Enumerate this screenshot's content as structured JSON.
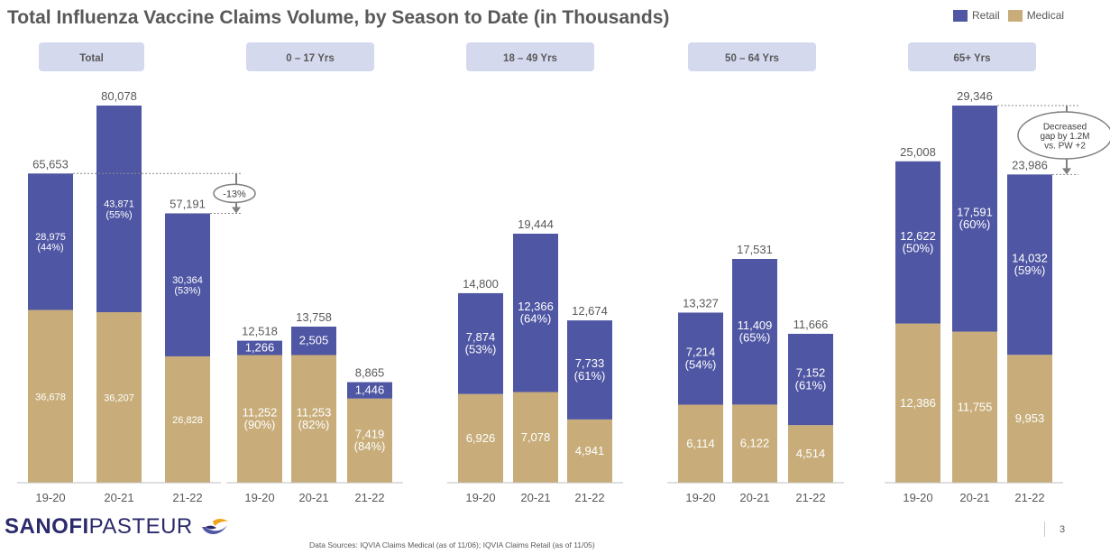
{
  "title": "Total Influenza Vaccine Claims Volume, by Season to Date (in Thousands)",
  "legend": [
    {
      "label": "Retail",
      "color": "#4f56a3"
    },
    {
      "label": "Medical",
      "color": "#c8ad7a"
    }
  ],
  "colors": {
    "retail": "#4f56a3",
    "medical": "#c8ad7a",
    "panel_header": "#d5d9ee",
    "text": "#595959"
  },
  "chart_data": {
    "type": "bar",
    "stacked": true,
    "ylim": [
      0,
      80078
    ],
    "groups": [
      {
        "label": "Total",
        "categories": [
          "19-20",
          "20-21",
          "21-22"
        ],
        "medical": [
          36678,
          36207,
          26828
        ],
        "retail": [
          28975,
          43871,
          30364
        ],
        "totals": [
          65653,
          80078,
          57191
        ],
        "medical_labels": [
          "36,678",
          "36,207",
          "26,828"
        ],
        "retail_labels": [
          "28,975\n(44%)",
          "43,871\n(55%)",
          "30,364\n(53%)"
        ],
        "total_labels": [
          "65,653",
          "80,078",
          "57,191"
        ]
      },
      {
        "label": "0 – 17 Yrs",
        "categories": [
          "19-20",
          "20-21",
          "21-22"
        ],
        "medical": [
          11252,
          11253,
          7419
        ],
        "retail": [
          1266,
          2505,
          1446
        ],
        "totals": [
          12518,
          13758,
          8865
        ],
        "medical_labels": [
          "11,252\n(90%)",
          "11,253\n(82%)",
          "7,419\n(84%)"
        ],
        "retail_labels": [
          "1,266",
          "2,505",
          "1,446"
        ],
        "total_labels": [
          "12,518",
          "13,758",
          "8,865"
        ]
      },
      {
        "label": "18 – 49 Yrs",
        "categories": [
          "19-20",
          "20-21",
          "21-22"
        ],
        "medical": [
          6926,
          7078,
          4941
        ],
        "retail": [
          7874,
          12366,
          7733
        ],
        "totals": [
          14800,
          19444,
          12674
        ],
        "medical_labels": [
          "6,926",
          "7,078",
          "4,941"
        ],
        "retail_labels": [
          "7,874\n(53%)",
          "12,366\n(64%)",
          "7,733\n(61%)"
        ],
        "total_labels": [
          "14,800",
          "19,444",
          "12,674"
        ]
      },
      {
        "label": "50 – 64 Yrs",
        "categories": [
          "19-20",
          "20-21",
          "21-22"
        ],
        "medical": [
          6114,
          6122,
          4514
        ],
        "retail": [
          7214,
          11409,
          7152
        ],
        "totals": [
          13327,
          17531,
          11666
        ],
        "medical_labels": [
          "6,114",
          "6,122",
          "4,514"
        ],
        "retail_labels": [
          "7,214\n(54%)",
          "11,409\n(65%)",
          "7,152\n(61%)"
        ],
        "total_labels": [
          "13,327",
          "17,531",
          "11,666"
        ]
      },
      {
        "label": "65+ Yrs",
        "categories": [
          "19-20",
          "20-21",
          "21-22"
        ],
        "medical": [
          12386,
          11755,
          9953
        ],
        "retail": [
          12622,
          17591,
          14032
        ],
        "totals": [
          25008,
          29346,
          23986
        ],
        "medical_labels": [
          "12,386",
          "11,755",
          "9,953"
        ],
        "retail_labels": [
          "12,622\n(50%)",
          "17,591\n(60%)",
          "14,032\n(59%)"
        ],
        "total_labels": [
          "25,008",
          "29,346",
          "23,986"
        ]
      }
    ],
    "annotations": [
      {
        "text": "-13%",
        "group": 0
      },
      {
        "text": "Decreased\ngap by 1.2M\nvs. PW +2",
        "group": 4
      }
    ]
  },
  "logo": {
    "text_bold": "SANOFI",
    "text_light": " PASTEUR"
  },
  "footnote": "Data Sources: IQVIA Claims Medical (as of 11/06); IQVIA Claims Retail (as of 11/05)",
  "page_number": "3"
}
